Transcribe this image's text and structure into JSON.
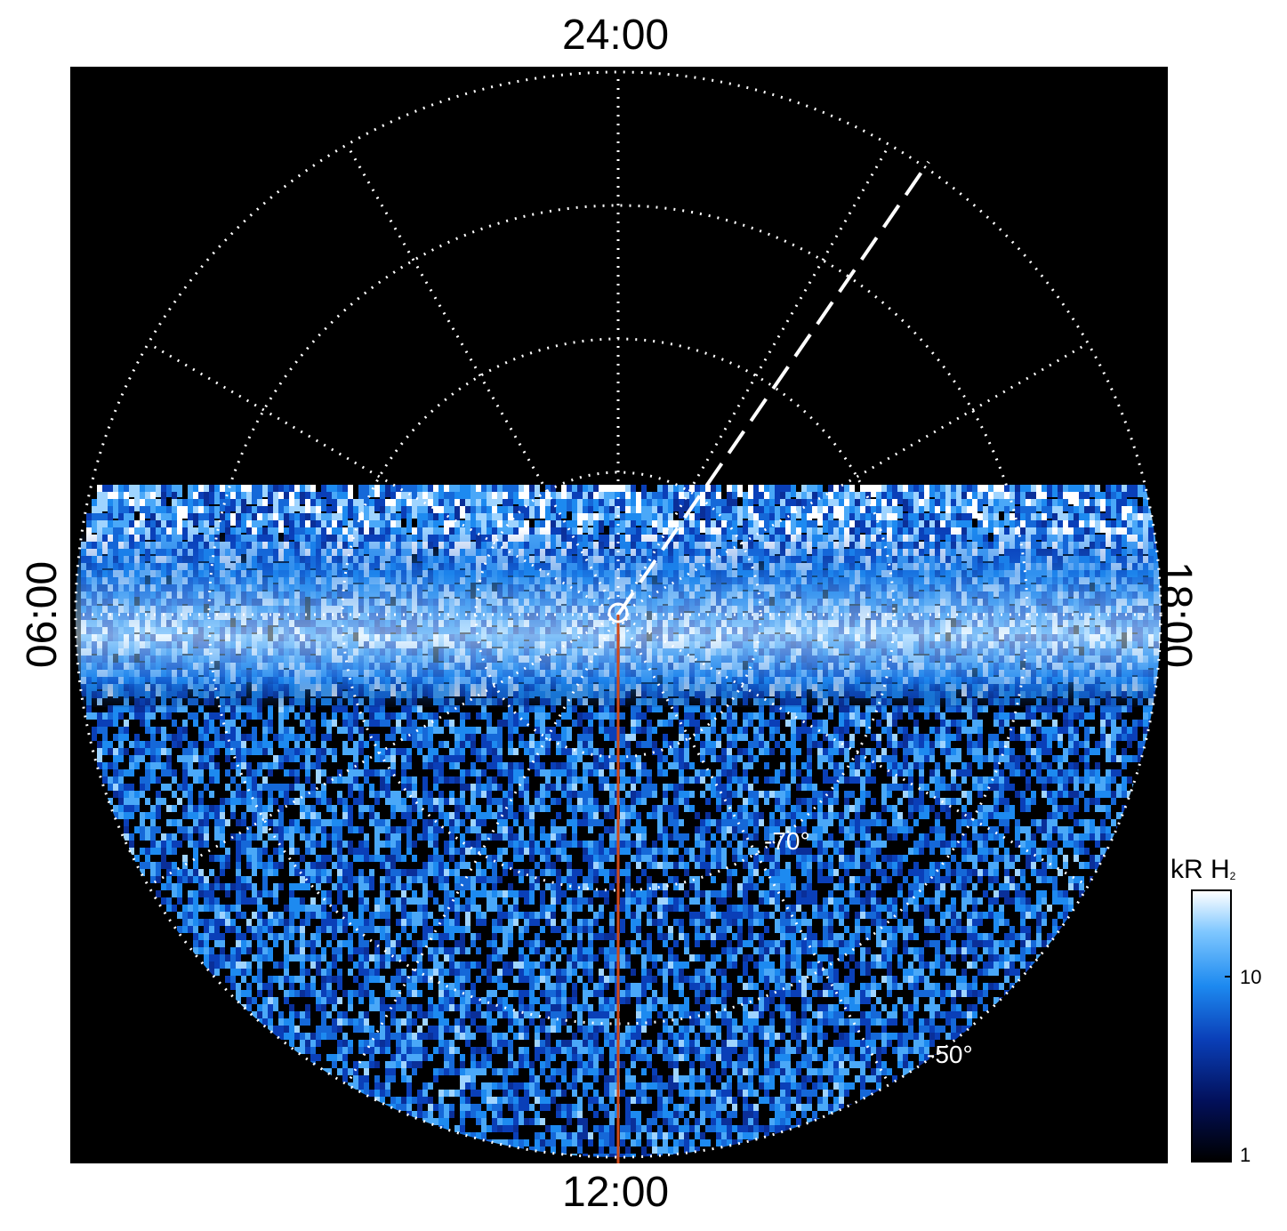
{
  "clock_labels": {
    "top": "24:00",
    "bottom": "12:00",
    "left": "06:00",
    "right": "18:00"
  },
  "lat_labels": {
    "inner": "-70°",
    "outer": "-50°"
  },
  "colorbar": {
    "title": "kR H",
    "title_sub": "2",
    "ticks": [
      "10",
      "1"
    ],
    "scale": "log"
  },
  "colors": {
    "background": "#000000",
    "grid": "#ffffff",
    "meridian": "#d04a1a"
  }
}
